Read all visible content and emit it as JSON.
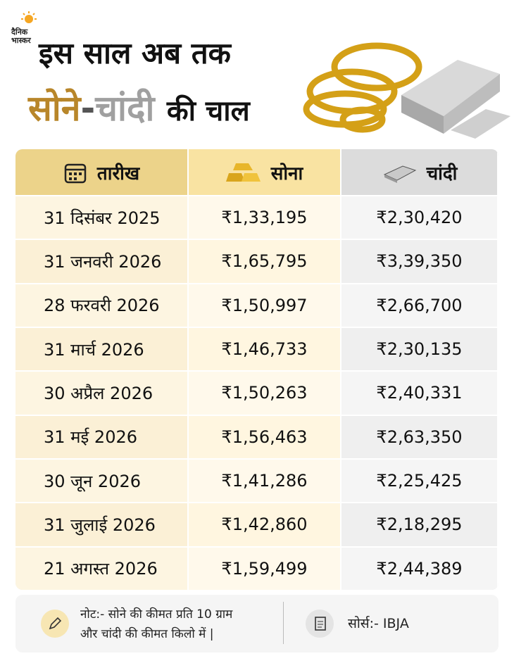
{
  "header": {
    "logo": [
      "दैनिक",
      "भास्कर"
    ],
    "title_line1": "इस साल अब तक",
    "title_gold": "सोने",
    "title_dash": "-",
    "title_silver": "चांदी",
    "title_rest": "की चाल"
  },
  "table": {
    "columns": [
      "तारीख",
      "सोना",
      "चांदी"
    ],
    "rows": [
      [
        "31 दिसंबर 2025",
        "₹1,33,195",
        "₹2,30,420"
      ],
      [
        "31 जनवरी 2026",
        "₹1,65,795",
        "₹3,39,350"
      ],
      [
        "28 फरवरी 2026",
        "₹1,50,997",
        "₹2,66,700"
      ],
      [
        "31 मार्च 2026",
        "₹1,46,733",
        "₹2,30,135"
      ],
      [
        "30 अप्रैल 2026",
        "₹1,50,263",
        "₹2,40,331"
      ],
      [
        "31 मई 2026",
        "₹1,56,463",
        "₹2,63,350"
      ],
      [
        "30 जून 2026",
        "₹1,41,286",
        "₹2,25,425"
      ],
      [
        "31 जुलाई 2026",
        "₹1,42,860",
        "₹2,18,295"
      ],
      [
        "21 अगस्त 2026",
        "₹1,59,499",
        "₹2,44,389"
      ]
    ]
  },
  "footer": {
    "note": [
      "नोट:- सोने की कीमत प्रति 10 ग्राम",
      "और चांदी की कीमत किलो में |"
    ],
    "source": "सोर्स:- IBJA"
  }
}
